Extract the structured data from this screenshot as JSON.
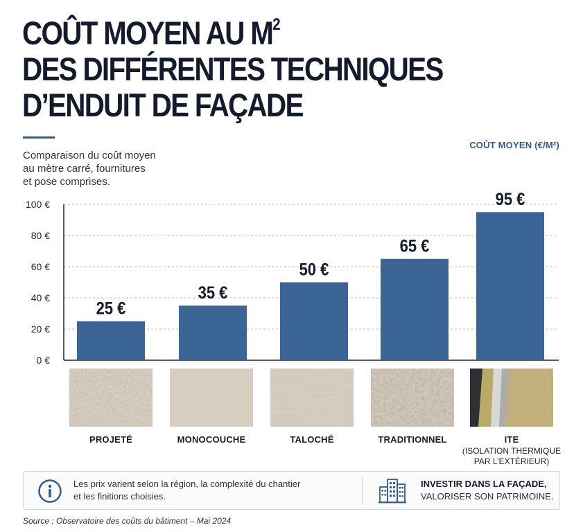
{
  "title_lines": [
    "COÛT MOYEN AU M",
    "DES DIFFÉRENTES TECHNIQUES",
    "D’ENDUIT DE FAÇADE"
  ],
  "title_superscript": "2",
  "subtitle_lines": [
    "Comparaison du coût moyen",
    "au mètre carré, fournitures",
    "et pose comprises."
  ],
  "unit_label": "COÛT MOYEN (€/M²)",
  "chart_data": {
    "type": "bar",
    "categories": [
      "PROJETÉ",
      "MONOCOUCHE",
      "TALOCHÉ",
      "TRADITIONNEL",
      "ITE"
    ],
    "category_sublabels": [
      "",
      "",
      "",
      "",
      "(ISOLATION THERMIQUE\nPAR L’EXTÉRIEUR)"
    ],
    "values": [
      25,
      35,
      50,
      65,
      95
    ],
    "value_labels": [
      "25 €",
      "35 €",
      "50 €",
      "65 €",
      "95 €"
    ],
    "yticks": [
      0,
      20,
      40,
      60,
      80,
      100
    ],
    "ytick_labels": [
      "0 €",
      "20 €",
      "40 €",
      "60 €",
      "80 €",
      "100 €"
    ],
    "ylim": [
      0,
      100
    ],
    "grid": true,
    "bar_color": "#3a6595"
  },
  "colors": {
    "accent": "#2f5b8e",
    "bar": "#3a6595",
    "title": "#141b2c"
  },
  "textures": [
    "projete-texture",
    "monocouche-texture",
    "taloche-texture",
    "traditionnel-texture",
    "ite-layers-texture"
  ],
  "info": {
    "icon": "info-icon",
    "text_lines": [
      "Les prix varient selon la région, la complexité du chantier",
      "et les finitions choisies."
    ],
    "side_icon": "building-icon",
    "side_line1": "INVESTIR DANS LA FAÇADE,",
    "side_line2": "VALORISER SON PATRIMOINE."
  },
  "source": "Source : Observatoire des coûts du bâtiment – Mai 2024"
}
